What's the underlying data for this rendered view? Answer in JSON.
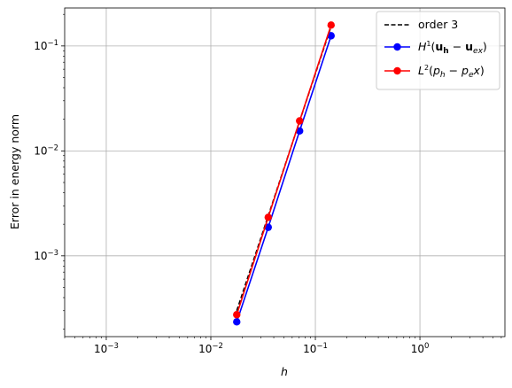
{
  "chart_data": {
    "type": "line",
    "title": "",
    "xlabel": "h",
    "ylabel": "Error in energy norm",
    "xscale": "log",
    "yscale": "log",
    "xlim": [
      0.0004,
      6.5
    ],
    "ylim": [
      0.00017,
      0.23
    ],
    "grid": true,
    "legend_position": "top-right",
    "x_ticks": [
      {
        "value": 0.001,
        "base": "10",
        "exp": "−3"
      },
      {
        "value": 0.01,
        "base": "10",
        "exp": "−2"
      },
      {
        "value": 0.1,
        "base": "10",
        "exp": "−1"
      },
      {
        "value": 1,
        "base": "10",
        "exp": "0"
      }
    ],
    "y_ticks": [
      {
        "value": 0.001,
        "base": "10",
        "exp": "−3"
      },
      {
        "value": 0.01,
        "base": "10",
        "exp": "−2"
      },
      {
        "value": 0.1,
        "base": "10",
        "exp": "−1"
      }
    ],
    "series": [
      {
        "key": "order",
        "label": "order 3",
        "color": "#000000",
        "dashed": true,
        "marker": false,
        "x": [
          0.0177,
          0.0354,
          0.0707,
          0.1414
        ],
        "y": [
          0.0003,
          0.0024,
          0.0192,
          0.1536
        ]
      },
      {
        "key": "h1",
        "label": "H¹(uₕ − uₑₓ)",
        "color": "#0000ff",
        "dashed": false,
        "marker": true,
        "x": [
          0.0177,
          0.0354,
          0.0707,
          0.1414
        ],
        "y": [
          0.000235,
          0.00187,
          0.0155,
          0.125
        ]
      },
      {
        "key": "l2",
        "label": "L²(pₕ − pₑx)",
        "color": "#ff0000",
        "dashed": false,
        "marker": true,
        "x": [
          0.0177,
          0.0354,
          0.0707,
          0.1414
        ],
        "y": [
          0.000275,
          0.00233,
          0.0193,
          0.158
        ]
      }
    ]
  }
}
